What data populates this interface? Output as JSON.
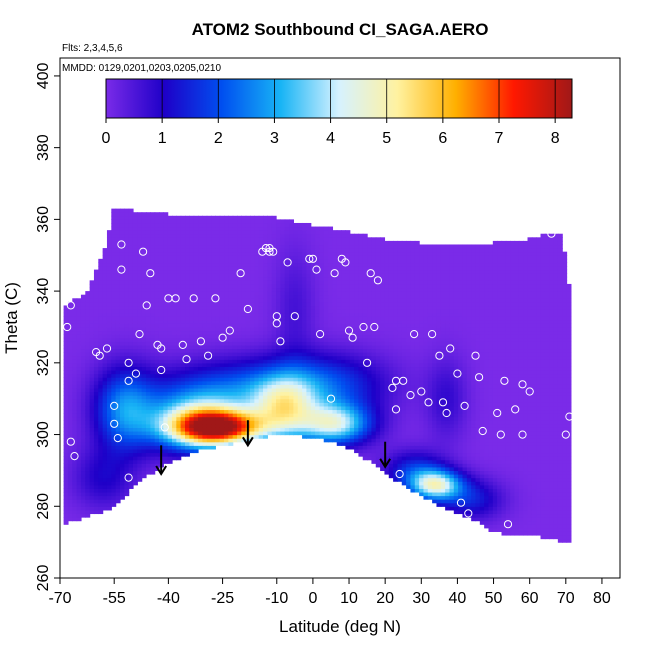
{
  "chart_data": {
    "type": "heatmap",
    "title": "ATOM2 Southbound CI_SAGA.AERO",
    "flights_note": "Flts: 2,3,4,5,6",
    "dates_note": "MMDD: 0129,0201,0203,0205,0210",
    "xlabel": "Latitude (deg N)",
    "ylabel": "Theta (C)",
    "xlim": [
      -70,
      85
    ],
    "ylim": [
      260,
      405
    ],
    "xticks": [
      -70,
      -55,
      -40,
      -25,
      -10,
      0,
      10,
      20,
      30,
      40,
      50,
      60,
      70,
      80
    ],
    "yticks": [
      260,
      280,
      300,
      320,
      340,
      360,
      380,
      400
    ],
    "colorbar": {
      "min": 0,
      "max": 8.3,
      "ticks": [
        0,
        1,
        2,
        3,
        4,
        5,
        6,
        7,
        8
      ],
      "colors": [
        "#7a2be8",
        "#1e00c8",
        "#0050f0",
        "#18b4f5",
        "#d6f2ff",
        "#fff2a0",
        "#ffb000",
        "#ff1800",
        "#a01818"
      ]
    },
    "background_value": 0,
    "data_top_boundary": [
      [
        -69,
        335
      ],
      [
        -62,
        340
      ],
      [
        -58,
        350
      ],
      [
        -55,
        363
      ],
      [
        -50,
        362
      ],
      [
        -40,
        361
      ],
      [
        -30,
        361
      ],
      [
        -20,
        361
      ],
      [
        -10,
        360
      ],
      [
        0,
        358
      ],
      [
        10,
        356
      ],
      [
        20,
        354
      ],
      [
        30,
        353
      ],
      [
        40,
        352
      ],
      [
        50,
        353
      ],
      [
        60,
        354
      ],
      [
        65,
        356
      ],
      [
        69,
        355
      ],
      [
        71,
        340
      ]
    ],
    "data_bottom_boundary": [
      [
        -69,
        275
      ],
      [
        -60,
        278
      ],
      [
        -55,
        280
      ],
      [
        -50,
        285
      ],
      [
        -45,
        289
      ],
      [
        -40,
        292
      ],
      [
        -35,
        294
      ],
      [
        -30,
        296
      ],
      [
        -25,
        297
      ],
      [
        -20,
        298
      ],
      [
        -15,
        299
      ],
      [
        -10,
        300
      ],
      [
        -5,
        300
      ],
      [
        0,
        299
      ],
      [
        5,
        298
      ],
      [
        10,
        296
      ],
      [
        15,
        293
      ],
      [
        20,
        289
      ],
      [
        25,
        286
      ],
      [
        30,
        283
      ],
      [
        35,
        280
      ],
      [
        40,
        278
      ],
      [
        45,
        276
      ],
      [
        50,
        273
      ],
      [
        55,
        272
      ],
      [
        60,
        272
      ],
      [
        65,
        271
      ],
      [
        71,
        270
      ]
    ],
    "hotspots": [
      {
        "lat": -26,
        "theta": 302,
        "value": 7.0,
        "sx": 9,
        "sy": 3.5
      },
      {
        "lat": -33,
        "theta": 304,
        "value": 3.0,
        "sx": 9,
        "sy": 6
      },
      {
        "lat": -52,
        "theta": 307,
        "value": 2.6,
        "sx": 6,
        "sy": 8
      },
      {
        "lat": -8,
        "theta": 307,
        "value": 3.2,
        "sx": 6,
        "sy": 6
      },
      {
        "lat": 6,
        "theta": 303,
        "value": 4.0,
        "sx": 7,
        "sy": 4
      },
      {
        "lat": -20,
        "theta": 312,
        "value": 2.0,
        "sx": 15,
        "sy": 6
      },
      {
        "lat": 3,
        "theta": 314,
        "value": 1.8,
        "sx": 12,
        "sy": 6
      },
      {
        "lat": 34,
        "theta": 286,
        "value": 4.2,
        "sx": 5,
        "sy": 3
      },
      {
        "lat": 28,
        "theta": 290,
        "value": 1.6,
        "sx": 6,
        "sy": 4
      },
      {
        "lat": 44,
        "theta": 282,
        "value": 1.4,
        "sx": 6,
        "sy": 4
      },
      {
        "lat": -58,
        "theta": 288,
        "value": 1.0,
        "sx": 6,
        "sy": 6
      },
      {
        "lat": 37,
        "theta": 310,
        "value": 0.8,
        "sx": 4,
        "sy": 8
      },
      {
        "lat": -5,
        "theta": 335,
        "value": 0.6,
        "sx": 4,
        "sy": 12
      }
    ],
    "observation_points": [
      [
        -68,
        330
      ],
      [
        -67,
        336
      ],
      [
        -67,
        298
      ],
      [
        -66,
        294
      ],
      [
        -60,
        323
      ],
      [
        -59,
        322
      ],
      [
        -57,
        324
      ],
      [
        -55,
        308
      ],
      [
        -55,
        303
      ],
      [
        -54,
        299
      ],
      [
        -53,
        353
      ],
      [
        -53,
        346
      ],
      [
        -51,
        320
      ],
      [
        -51,
        315
      ],
      [
        -51,
        288
      ],
      [
        -49,
        317
      ],
      [
        -48,
        328
      ],
      [
        -47,
        351
      ],
      [
        -46,
        336
      ],
      [
        -45,
        345
      ],
      [
        -43,
        325
      ],
      [
        -42,
        324
      ],
      [
        -42,
        318
      ],
      [
        -41,
        302
      ],
      [
        -40,
        338
      ],
      [
        -38,
        338
      ],
      [
        -36,
        325
      ],
      [
        -35,
        321
      ],
      [
        -33,
        338
      ],
      [
        -31,
        326
      ],
      [
        -29,
        322
      ],
      [
        -27,
        338
      ],
      [
        -25,
        327
      ],
      [
        -23,
        329
      ],
      [
        -20,
        345
      ],
      [
        -18,
        335
      ],
      [
        -14,
        351
      ],
      [
        -13,
        352
      ],
      [
        -12,
        352
      ],
      [
        -12,
        351
      ],
      [
        -11,
        351
      ],
      [
        -10,
        333
      ],
      [
        -10,
        331
      ],
      [
        -9,
        326
      ],
      [
        -7,
        348
      ],
      [
        -5,
        333
      ],
      [
        -1,
        349
      ],
      [
        0,
        349
      ],
      [
        1,
        346
      ],
      [
        2,
        328
      ],
      [
        5,
        310
      ],
      [
        6,
        345
      ],
      [
        8,
        349
      ],
      [
        9,
        348
      ],
      [
        10,
        329
      ],
      [
        11,
        327
      ],
      [
        14,
        330
      ],
      [
        15,
        320
      ],
      [
        16,
        345
      ],
      [
        17,
        330
      ],
      [
        18,
        343
      ],
      [
        22,
        313
      ],
      [
        23,
        307
      ],
      [
        23,
        315
      ],
      [
        24,
        289
      ],
      [
        25,
        315
      ],
      [
        27,
        311
      ],
      [
        28,
        328
      ],
      [
        30,
        312
      ],
      [
        32,
        309
      ],
      [
        33,
        328
      ],
      [
        35,
        322
      ],
      [
        36,
        309
      ],
      [
        37,
        306
      ],
      [
        38,
        324
      ],
      [
        40,
        317
      ],
      [
        41,
        281
      ],
      [
        42,
        308
      ],
      [
        43,
        278
      ],
      [
        45,
        322
      ],
      [
        46,
        316
      ],
      [
        47,
        301
      ],
      [
        51,
        306
      ],
      [
        52,
        300
      ],
      [
        53,
        315
      ],
      [
        54,
        275
      ],
      [
        56,
        307
      ],
      [
        58,
        300
      ],
      [
        58,
        314
      ],
      [
        60,
        312
      ],
      [
        66,
        356
      ],
      [
        70,
        300
      ],
      [
        71,
        305
      ]
    ],
    "arrows": [
      {
        "lat": -42,
        "theta_start": 297,
        "theta_end": 289
      },
      {
        "lat": -18,
        "theta_start": 304,
        "theta_end": 297
      },
      {
        "lat": 20,
        "theta_start": 298,
        "theta_end": 291
      }
    ]
  }
}
